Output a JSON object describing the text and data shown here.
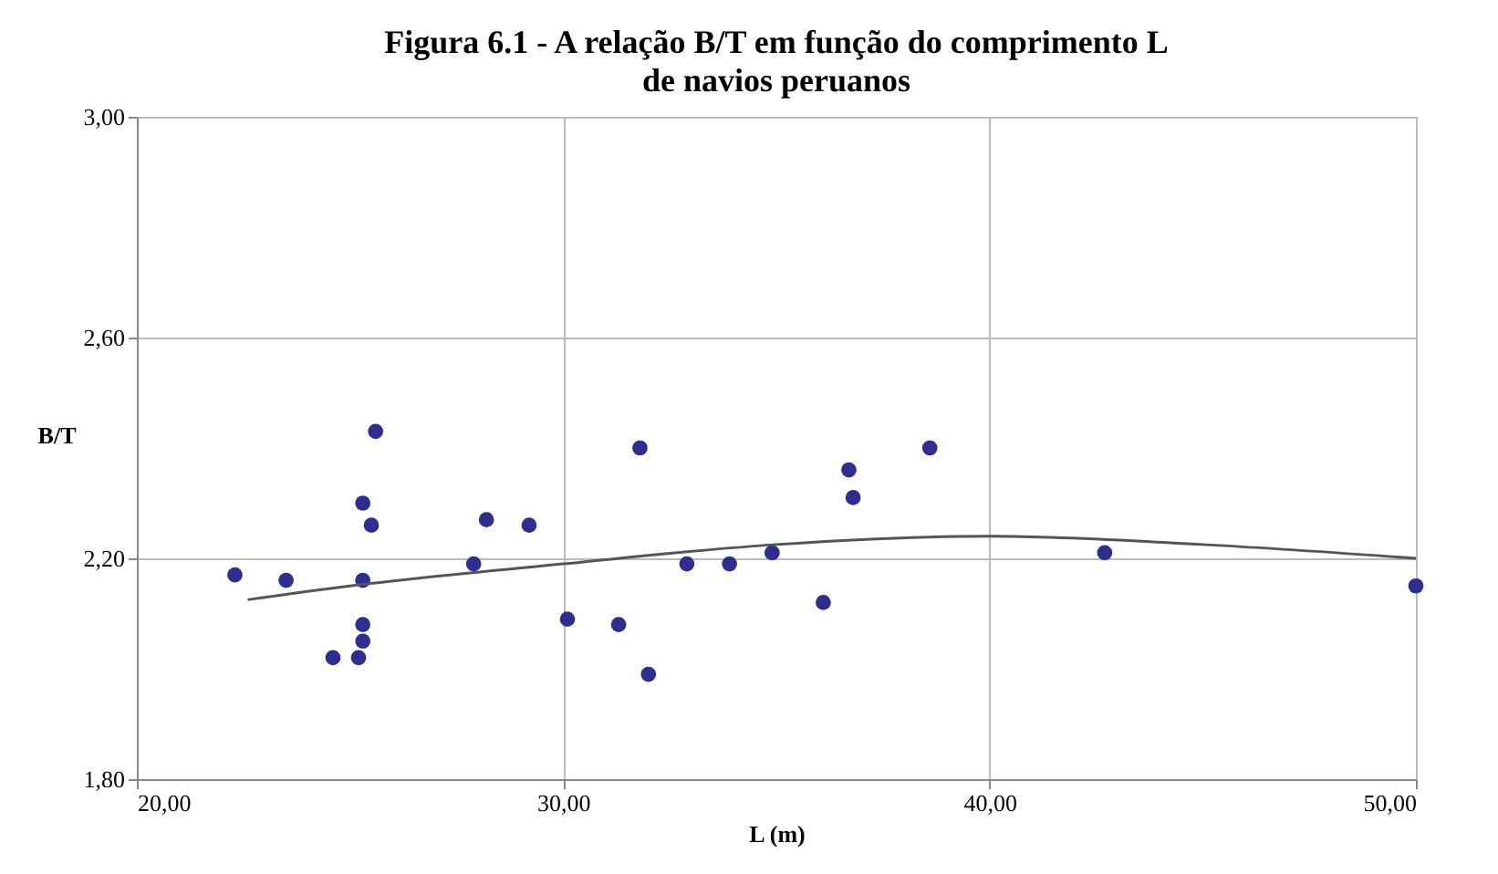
{
  "chart_data": {
    "type": "scatter",
    "title": "Figura 6.1 - A relação B/T em função do comprimento L",
    "subtitle": "de navios peruanos",
    "xlabel": "L (m)",
    "ylabel": "B/T",
    "xlim": [
      20,
      50
    ],
    "xticks": [
      {
        "value": 20,
        "label": "20,00"
      },
      {
        "value": 30,
        "label": "30,00"
      },
      {
        "value": 40,
        "label": "40,00"
      },
      {
        "value": 50,
        "label": "50,00"
      }
    ],
    "ylim": [
      1.8,
      3.0
    ],
    "yticks": [
      {
        "value": 1.8,
        "label": "1,80"
      },
      {
        "value": 2.2,
        "label": "2,20"
      },
      {
        "value": 2.6,
        "label": "2,60"
      },
      {
        "value": 3.0,
        "label": "3,00"
      }
    ],
    "grid": true,
    "series": [
      {
        "marker": "circle",
        "color": "#2e2e8f",
        "x": [
          50.0,
          42.7,
          38.6,
          36.8,
          36.7,
          36.1,
          34.9,
          33.9,
          32.9,
          32.0,
          31.8,
          31.3,
          30.1,
          29.2,
          28.2,
          27.9,
          25.6,
          25.5,
          25.3,
          25.3,
          25.3,
          25.3,
          25.2,
          24.6,
          23.5,
          22.3
        ],
        "values": [
          2.15,
          2.21,
          2.4,
          2.31,
          2.36,
          2.12,
          2.21,
          2.19,
          2.19,
          1.99,
          2.4,
          2.08,
          2.09,
          2.26,
          2.27,
          2.19,
          2.43,
          2.26,
          2.3,
          2.16,
          2.08,
          2.05,
          2.02,
          2.02,
          2.16,
          2.17
        ]
      },
      {
        "type": "line",
        "color": "#555555",
        "x": [
          22.6,
          25,
          30,
          35,
          40,
          45,
          50
        ],
        "values": [
          2.125,
          2.15,
          2.19,
          2.225,
          2.24,
          2.225,
          2.2
        ]
      }
    ]
  }
}
